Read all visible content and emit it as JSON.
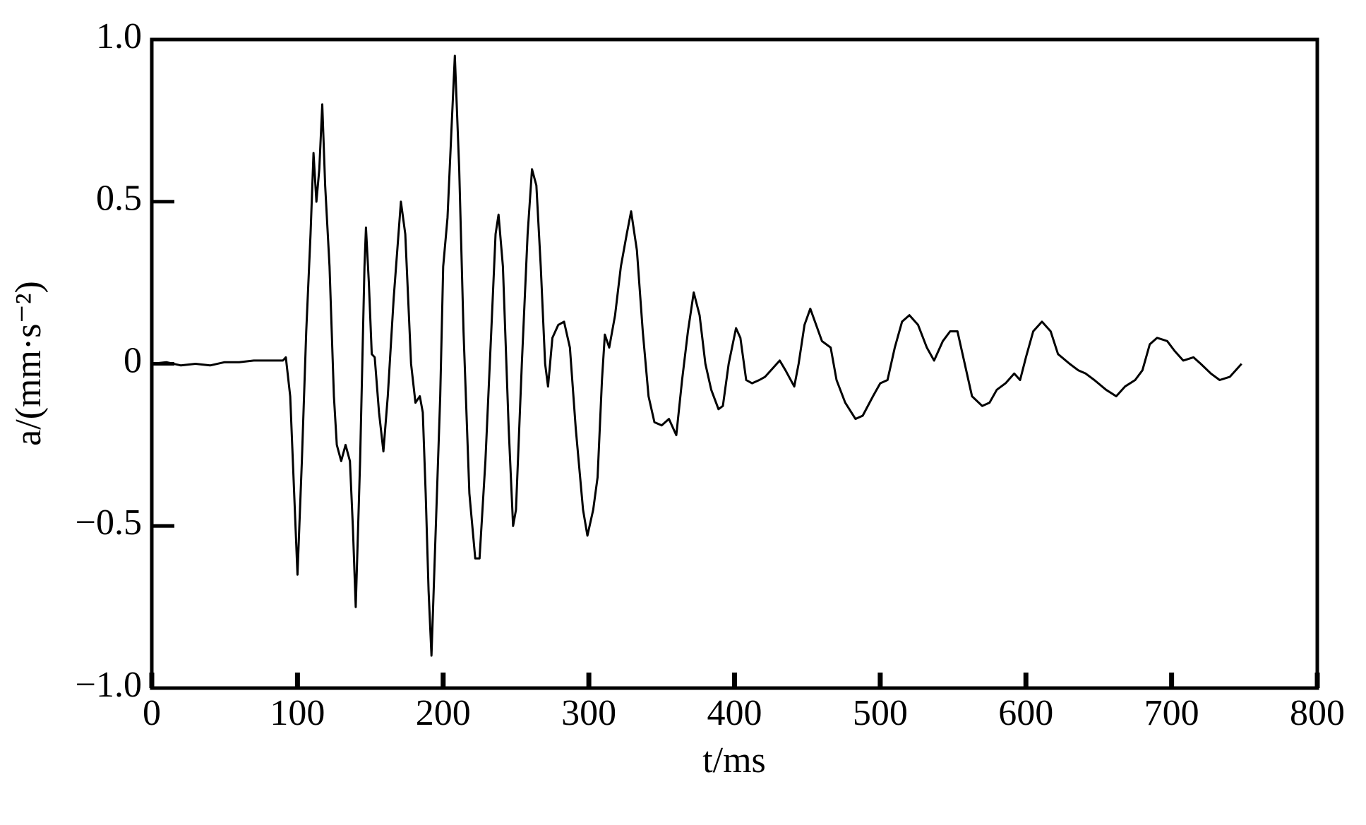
{
  "chart_data": {
    "type": "line",
    "xlabel": "t/ms",
    "ylabel": "a/(mm·s⁻²)",
    "xlim": [
      0,
      800
    ],
    "ylim": [
      -1.0,
      1.0
    ],
    "xticks": [
      0,
      100,
      200,
      300,
      400,
      500,
      600,
      700,
      800
    ],
    "yticks": [
      {
        "value": -1.0,
        "label": "−1.0"
      },
      {
        "value": -0.5,
        "label": "−0.5"
      },
      0,
      {
        "value": 0.5,
        "label": "0.5"
      },
      {
        "value": 1.0,
        "label": "1.0"
      }
    ],
    "series": [
      {
        "color": "#000000",
        "x": [
          0,
          10,
          20,
          30,
          40,
          50,
          60,
          70,
          80,
          90,
          92,
          95,
          100,
          103,
          106,
          109,
          111,
          113,
          115,
          117,
          119,
          122,
          125,
          127,
          130,
          133,
          136,
          138,
          140,
          143,
          146,
          147,
          149,
          151,
          153,
          156,
          159,
          162,
          166,
          171,
          174,
          178,
          181,
          184,
          186,
          188,
          190,
          192,
          195,
          198,
          200,
          203,
          206,
          208,
          211,
          214,
          218,
          222,
          225,
          229,
          233,
          236,
          238,
          241,
          245,
          248,
          250,
          254,
          258,
          261,
          264,
          267,
          270,
          272,
          275,
          279,
          283,
          287,
          291,
          296,
          299,
          303,
          306,
          309,
          311,
          314,
          318,
          322,
          326,
          329,
          333,
          337,
          341,
          345,
          350,
          355,
          360,
          364,
          368,
          372,
          376,
          380,
          384,
          389,
          392,
          396,
          401,
          404,
          408,
          412,
          417,
          421,
          427,
          431,
          435,
          441,
          444,
          448,
          452,
          456,
          460,
          466,
          470,
          476,
          483,
          488,
          495,
          500,
          505,
          510,
          515,
          520,
          526,
          532,
          537,
          543,
          548,
          553,
          558,
          563,
          570,
          575,
          580,
          586,
          592,
          596,
          600,
          605,
          611,
          617,
          622,
          630,
          636,
          641,
          647,
          655,
          662,
          668,
          675,
          680,
          685,
          690,
          697,
          702,
          708,
          715,
          720,
          727,
          733,
          740,
          746,
          748
        ],
        "values": [
          0,
          0.005,
          -0.005,
          0,
          -0.005,
          0.005,
          0.005,
          0.01,
          0.01,
          0.01,
          0.02,
          -0.1,
          -0.65,
          -0.3,
          0.1,
          0.4,
          0.65,
          0.5,
          0.6,
          0.8,
          0.55,
          0.3,
          -0.1,
          -0.25,
          -0.3,
          -0.25,
          -0.3,
          -0.5,
          -0.75,
          -0.3,
          0.3,
          0.42,
          0.25,
          0.03,
          0.02,
          -0.15,
          -0.27,
          -0.1,
          0.2,
          0.5,
          0.4,
          0.0,
          -0.12,
          -0.1,
          -0.15,
          -0.4,
          -0.7,
          -0.9,
          -0.5,
          -0.1,
          0.3,
          0.45,
          0.75,
          0.95,
          0.6,
          0.1,
          -0.4,
          -0.6,
          -0.6,
          -0.3,
          0.1,
          0.4,
          0.46,
          0.3,
          -0.2,
          -0.5,
          -0.45,
          0.0,
          0.4,
          0.6,
          0.55,
          0.3,
          0.0,
          -0.07,
          0.08,
          0.12,
          0.13,
          0.05,
          -0.2,
          -0.45,
          -0.53,
          -0.45,
          -0.35,
          -0.05,
          0.09,
          0.05,
          0.15,
          0.3,
          0.4,
          0.47,
          0.35,
          0.1,
          -0.1,
          -0.18,
          -0.19,
          -0.17,
          -0.22,
          -0.05,
          0.1,
          0.22,
          0.15,
          0.0,
          -0.08,
          -0.14,
          -0.13,
          0.0,
          0.11,
          0.08,
          -0.05,
          -0.06,
          -0.05,
          -0.04,
          -0.01,
          0.01,
          -0.02,
          -0.07,
          0.0,
          0.12,
          0.17,
          0.12,
          0.07,
          0.05,
          -0.05,
          -0.12,
          -0.17,
          -0.16,
          -0.1,
          -0.06,
          -0.05,
          0.05,
          0.13,
          0.15,
          0.12,
          0.05,
          0.01,
          0.07,
          0.1,
          0.1,
          0.0,
          -0.1,
          -0.13,
          -0.12,
          -0.08,
          -0.06,
          -0.03,
          -0.05,
          0.02,
          0.1,
          0.13,
          0.1,
          0.03,
          0.0,
          -0.02,
          -0.03,
          -0.05,
          -0.08,
          -0.1,
          -0.07,
          -0.05,
          -0.02,
          0.06,
          0.08,
          0.07,
          0.04,
          0.01,
          0.02,
          0.0,
          -0.03,
          -0.05,
          -0.04,
          -0.01,
          0.0
        ]
      }
    ]
  }
}
